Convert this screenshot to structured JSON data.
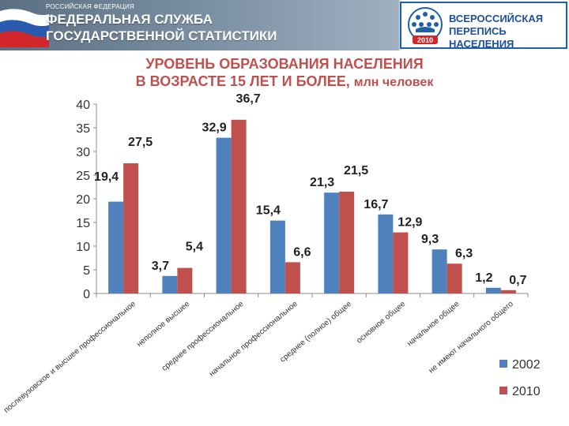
{
  "header": {
    "org_small": "РОССИЙСКАЯ ФЕДЕРАЦИЯ",
    "org_line1": "ФЕДЕРАЛЬНАЯ СЛУЖБА",
    "org_line2": "ГОСУДАРСТВЕННОЙ СТАТИСТИКИ",
    "census_line1": "ВСЕРОССИЙСКАЯ",
    "census_line2": "ПЕРЕПИСЬ НАСЕЛЕНИЯ",
    "census_year": "2010"
  },
  "chart_data": {
    "type": "bar",
    "title_line1": "УРОВЕНЬ ОБРАЗОВАНИЯ НАСЕЛЕНИЯ",
    "title_line2": "В ВОЗРАСТЕ 15 ЛЕТ И БОЛЕЕ,",
    "title_unit": "млн человек",
    "categories": [
      "послевузовское и высшее профессиональное",
      "неполное высшее",
      "среднее профессиональное",
      "начальное профессиональное",
      "среднее (полное) общее",
      "основное общее",
      "начальное общее",
      "не имеют начального общего"
    ],
    "series": [
      {
        "name": "2002",
        "color": "#4f81bd",
        "values": [
          19.4,
          3.7,
          32.9,
          15.4,
          21.3,
          16.7,
          9.3,
          1.2
        ],
        "labels": [
          "19,4",
          "3,7",
          "32,9",
          "15,4",
          "21,3",
          "16,7",
          "9,3",
          "1,2"
        ]
      },
      {
        "name": "2010",
        "color": "#c0504d",
        "values": [
          27.5,
          5.4,
          36.7,
          6.6,
          21.5,
          12.9,
          6.3,
          0.7
        ],
        "labels": [
          "27,5",
          "5,4",
          "36,7",
          "6,6",
          "21,5",
          "12,9",
          "6,3",
          "0,7"
        ]
      }
    ],
    "ylim": [
      0,
      40
    ],
    "yticks": [
      0,
      5,
      10,
      15,
      20,
      25,
      30,
      35,
      40
    ],
    "grid": false,
    "legend": "bottom-right"
  }
}
